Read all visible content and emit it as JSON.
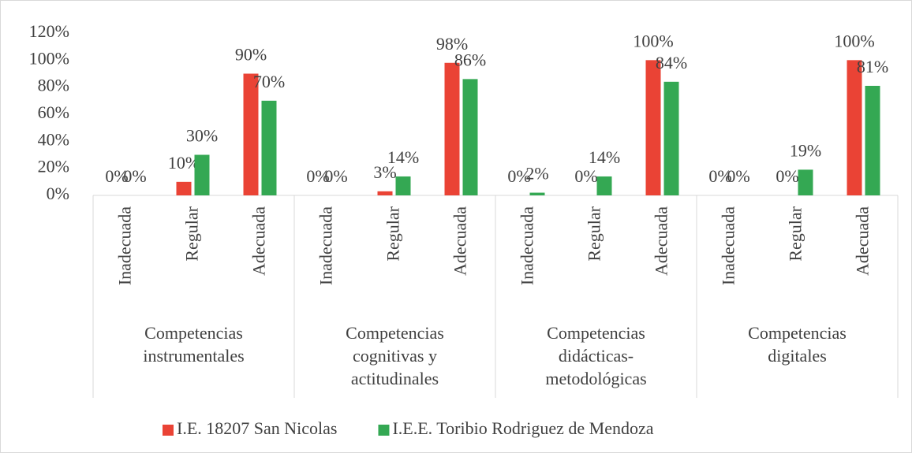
{
  "chart_data": {
    "type": "bar",
    "categories": [
      "Inadecuada",
      "Regular",
      "Adecuada",
      "Inadecuada",
      "Regular",
      "Adecuada",
      "Inadecuada",
      "Regular",
      "Adecuada",
      "Inadecuada",
      "Regular",
      "Adecuada"
    ],
    "groups": [
      "Competencias instrumentales",
      "Competencias cognitivas y actitudinales",
      "Competencias didácticas-metodológicas",
      "Competencias digitales"
    ],
    "series": [
      {
        "name": "I.E. 18207 San Nicolas",
        "color": "#ea4335",
        "values": [
          0,
          10,
          90,
          0,
          3,
          98,
          0,
          0,
          100,
          0,
          0,
          100
        ],
        "value_labels": [
          "0%",
          "10%",
          "90%",
          "0%",
          "3%",
          "98%",
          "0%",
          "0%",
          "100%",
          "0%",
          "0%",
          "100%"
        ]
      },
      {
        "name": "I.E.E. Toribio Rodriguez de Mendoza",
        "color": "#34a853",
        "values": [
          0,
          30,
          70,
          0,
          14,
          86,
          2,
          14,
          84,
          0,
          19,
          81
        ],
        "value_labels": [
          "0%",
          "30%",
          "70%",
          "0%",
          "14%",
          "86%",
          "2%",
          "14%",
          "84%",
          "0%",
          "19%",
          "81%"
        ]
      }
    ],
    "ylim": [
      0,
      120
    ],
    "yticks": [
      {
        "value": 0,
        "label": "0%"
      },
      {
        "value": 20,
        "label": "20%"
      },
      {
        "value": 40,
        "label": "40%"
      },
      {
        "value": 60,
        "label": "60%"
      },
      {
        "value": 80,
        "label": "80%"
      },
      {
        "value": 100,
        "label": "100%"
      },
      {
        "value": 120,
        "label": "120%"
      }
    ],
    "grid": false,
    "legend": "bottom"
  }
}
